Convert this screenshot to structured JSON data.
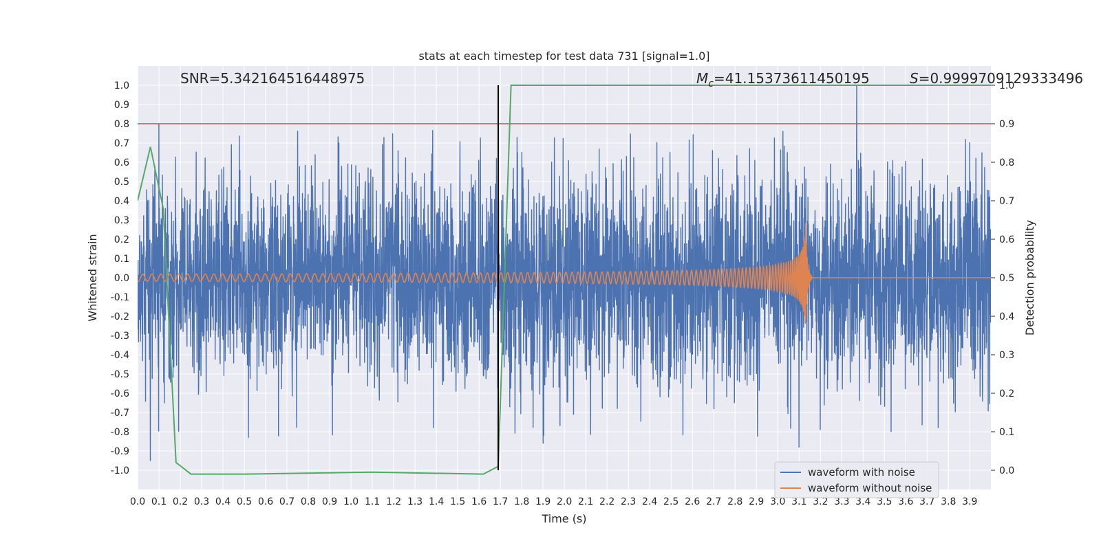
{
  "chart_data": {
    "type": "line",
    "title": "stats at each timestep for test data 731 [signal=1.0]",
    "xlabel": "Time (s)",
    "ylabel": "Whitened strain",
    "y2label": "Detection probability",
    "xlim": [
      0.0,
      3.999
    ],
    "ylim": [
      -1.1,
      1.1
    ],
    "y2lim": [
      -0.05,
      1.05
    ],
    "x_ticks": [
      "0.0",
      "0.1",
      "0.2",
      "0.3",
      "0.4",
      "0.5",
      "0.6",
      "0.7",
      "0.8",
      "0.9",
      "1.0",
      "1.1",
      "1.2",
      "1.3",
      "1.4",
      "1.5",
      "1.6",
      "1.7",
      "1.8",
      "1.9",
      "2.0",
      "2.1",
      "2.2",
      "2.3",
      "2.4",
      "2.5",
      "2.6",
      "2.7",
      "2.8",
      "2.9",
      "3.0",
      "3.1",
      "3.2",
      "3.3",
      "3.4",
      "3.5",
      "3.6",
      "3.7",
      "3.8",
      "3.9"
    ],
    "y_ticks": [
      "1.0",
      "0.9",
      "0.8",
      "0.7",
      "0.6",
      "0.5",
      "0.4",
      "0.3",
      "0.2",
      "0.1",
      "0.0",
      "-0.1",
      "-0.2",
      "-0.3",
      "-0.4",
      "-0.5",
      "-0.6",
      "-0.7",
      "-0.8",
      "-0.9",
      "-1.0"
    ],
    "y2_ticks": [
      "1.0",
      "0.9",
      "0.8",
      "0.7",
      "0.6",
      "0.5",
      "0.4",
      "0.3",
      "0.2",
      "0.1",
      "0.0"
    ],
    "grid": true,
    "legend_position": "lower-right",
    "annotations": {
      "snr": "SNR=5.342164516448975",
      "mc_symbol": "M",
      "mc_sub": "c",
      "mc_value": "=41.15373611450195",
      "s_symbol": "S",
      "s_value": "=0.9999709129333496"
    },
    "threshold_line": {
      "axis": "y2",
      "value": 0.9,
      "color": "#c44e52"
    },
    "vertical_marker": {
      "x": 1.69,
      "color": "#000000"
    },
    "series": [
      {
        "name": "waveform with noise",
        "axis": "y",
        "color": "#4c72b0",
        "kind": "noise",
        "sample_rate": 1024,
        "amplitude_range": [
          -1.0,
          1.0
        ],
        "peaks": [
          [
            0.1,
            0.8
          ],
          [
            3.37,
            1.0
          ],
          [
            0.06,
            -0.95
          ],
          [
            0.52,
            -0.83
          ],
          [
            1.9,
            -0.86
          ],
          [
            3.1,
            -0.88
          ]
        ]
      },
      {
        "name": "waveform without noise",
        "axis": "y",
        "color": "#dd8452",
        "kind": "chirp",
        "merger_time": 3.13,
        "peak_amplitude": 0.31
      },
      {
        "name": "",
        "axis": "y2",
        "color": "#55a868",
        "x": [
          0.0,
          0.06,
          0.12,
          0.18,
          0.25,
          0.5,
          1.1,
          1.62,
          1.69,
          1.75,
          2.0,
          3.0,
          3.999
        ],
        "values": [
          0.7,
          0.84,
          0.68,
          0.02,
          -0.01,
          -0.01,
          -0.005,
          -0.01,
          0.01,
          1.0,
          1.0,
          1.0,
          1.0
        ]
      }
    ]
  }
}
